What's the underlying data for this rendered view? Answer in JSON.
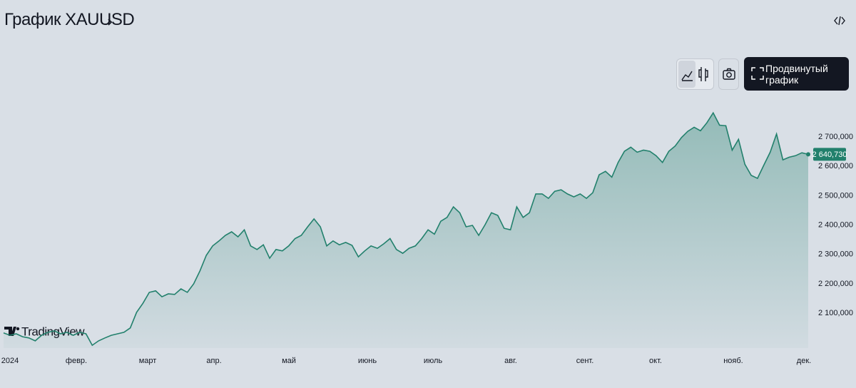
{
  "header": {
    "title": "График XAUUSD"
  },
  "toolbar": {
    "advanced_chart": "Продвинутый график"
  },
  "branding": "TradingView",
  "chart_data": {
    "type": "line",
    "color": "#22806c",
    "values": [
      2033,
      2025,
      2030,
      2020,
      2016,
      2006,
      2025,
      2035,
      2040,
      2030,
      2035,
      2025,
      2035,
      2030,
      1991,
      2006,
      2016,
      2025,
      2030,
      2035,
      2050,
      2103,
      2134,
      2171,
      2176,
      2156,
      2166,
      2164,
      2183,
      2171,
      2200,
      2244,
      2297,
      2329,
      2346,
      2365,
      2377,
      2360,
      2384,
      2329,
      2317,
      2333,
      2287,
      2317,
      2312,
      2329,
      2354,
      2365,
      2394,
      2421,
      2394,
      2329,
      2346,
      2333,
      2341,
      2331,
      2292,
      2312,
      2329,
      2321,
      2336,
      2354,
      2317,
      2304,
      2321,
      2329,
      2354,
      2384,
      2369,
      2413,
      2426,
      2462,
      2442,
      2394,
      2399,
      2365,
      2401,
      2442,
      2433,
      2389,
      2384,
      2462,
      2426,
      2442,
      2506,
      2506,
      2491,
      2515,
      2520,
      2506,
      2496,
      2506,
      2491,
      2510,
      2571,
      2583,
      2563,
      2613,
      2651,
      2665,
      2648,
      2655,
      2651,
      2636,
      2613,
      2651,
      2669,
      2698,
      2719,
      2733,
      2721,
      2748,
      2782,
      2740,
      2738,
      2655,
      2692,
      2607,
      2569,
      2559,
      2604,
      2648,
      2710,
      2622,
      2631,
      2636,
      2646,
      2640.73
    ],
    "last_price": {
      "value": 2640.73,
      "label": "2 640,730"
    },
    "ylim": [
      1980,
      2830
    ],
    "yticks": [
      {
        "value": 2100,
        "label": "2 100,000"
      },
      {
        "value": 2200,
        "label": "2 200,000"
      },
      {
        "value": 2300,
        "label": "2 300,000"
      },
      {
        "value": 2400,
        "label": "2 400,000"
      },
      {
        "value": 2500,
        "label": "2 500,000"
      },
      {
        "value": 2600,
        "label": "2 600,000"
      },
      {
        "value": 2700,
        "label": "2 700,000"
      }
    ],
    "x_labels": [
      "2024",
      "февр.",
      "март",
      "апр.",
      "май",
      "июнь",
      "июль",
      "авг.",
      "сент.",
      "окт.",
      "нояб.",
      "дек."
    ]
  }
}
